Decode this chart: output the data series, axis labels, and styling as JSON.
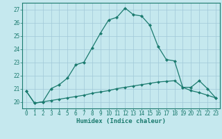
{
  "xlabel": "Humidex (Indice chaleur)",
  "x": [
    0,
    1,
    2,
    3,
    4,
    5,
    6,
    7,
    8,
    9,
    10,
    11,
    12,
    13,
    14,
    15,
    16,
    17,
    18,
    19,
    20,
    21,
    22,
    23
  ],
  "line1": [
    20.8,
    19.9,
    20.0,
    21.0,
    21.3,
    21.8,
    22.8,
    23.0,
    24.1,
    25.2,
    26.2,
    26.4,
    27.1,
    26.6,
    26.5,
    25.8,
    24.2,
    23.2,
    23.1,
    21.1,
    21.1,
    21.6,
    21.0,
    20.3
  ],
  "line2": [
    20.8,
    19.9,
    20.0,
    20.1,
    20.2,
    20.3,
    20.4,
    20.5,
    20.65,
    20.75,
    20.85,
    21.0,
    21.1,
    21.2,
    21.3,
    21.4,
    21.5,
    21.55,
    21.6,
    21.1,
    20.85,
    20.7,
    20.5,
    20.3
  ],
  "line_color": "#1a7a6e",
  "bg_color": "#c5e8ee",
  "grid_color": "#a0c8d8",
  "ylim": [
    19.5,
    27.5
  ],
  "xlim": [
    -0.5,
    23.5
  ],
  "yticks": [
    20,
    21,
    22,
    23,
    24,
    25,
    26,
    27
  ],
  "xticks": [
    0,
    1,
    2,
    3,
    4,
    5,
    6,
    7,
    8,
    9,
    10,
    11,
    12,
    13,
    14,
    15,
    16,
    17,
    18,
    19,
    20,
    21,
    22,
    23
  ],
  "tick_fontsize": 5.5,
  "xlabel_fontsize": 6.5
}
